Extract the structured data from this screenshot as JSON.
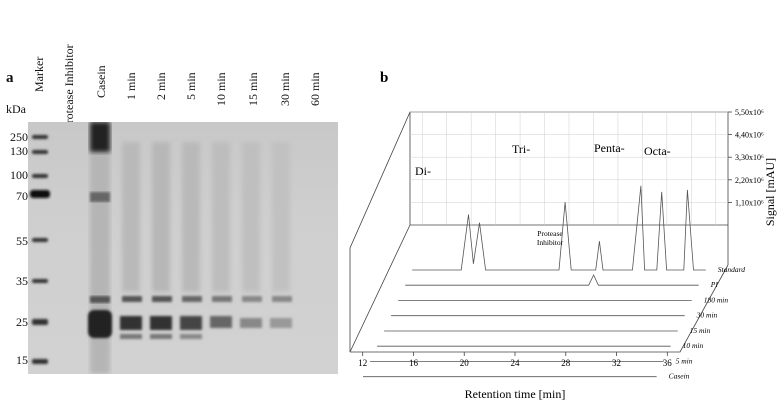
{
  "panel_a": {
    "letter": "a",
    "unit": "kDa",
    "lanes": [
      "Marker",
      "Protease  Inhibitor",
      "Casein",
      "1 min",
      "2 min",
      "5 min",
      "10 min",
      "15 min",
      "30 min",
      "60 min"
    ],
    "markers": [
      "250",
      "130",
      "100",
      "70",
      "55",
      "35",
      "25",
      "15"
    ]
  },
  "panel_b": {
    "letter": "b",
    "xlabel": "Retention time [min]",
    "ylabel": "Signal [mAU]",
    "peak_labels": [
      "Di-",
      "Tri-",
      "Protease Inhibitor",
      "Penta-",
      "Octa-"
    ],
    "y_ticks": [
      "1,10x10⁶",
      "2,20x10⁶",
      "3,30x10⁶",
      "4,40x10⁶",
      "5,50x10⁶"
    ],
    "x_ticks": [
      "12",
      "16",
      "20",
      "24",
      "28",
      "32",
      "36"
    ],
    "traces": [
      "Standard",
      "PI",
      "180 min",
      "30 min",
      "15 min",
      "10 min",
      "5 min",
      "Casein"
    ]
  },
  "chart_data": {
    "type": "line",
    "xlabel": "Retention time [min]",
    "ylabel": "Signal [mAU]",
    "xlim": [
      11,
      37
    ],
    "ylim": [
      0,
      5500000
    ],
    "series": [
      {
        "name": "Standard",
        "x": [
          12,
          16,
          16.6,
          17,
          17.5,
          18,
          20,
          24,
          24.5,
          25,
          27,
          27.3,
          27.6,
          30,
          30.7,
          31,
          31.5,
          32,
          32.4,
          32.8,
          33.5,
          34.2,
          34.5,
          35,
          36
        ],
        "values": [
          0,
          0,
          2700000,
          300000,
          2300000,
          0,
          0,
          0,
          3300000,
          0,
          0,
          1400000,
          0,
          0,
          4100000,
          0,
          0,
          0,
          3800000,
          0,
          0,
          0,
          3900000,
          0,
          0
        ]
      },
      {
        "name": "PI",
        "x": [
          12,
          16,
          20,
          27,
          27.4,
          27.8,
          32,
          36
        ],
        "values": [
          0,
          0,
          0,
          0,
          500000,
          0,
          0,
          0
        ]
      },
      {
        "name": "180 min",
        "x": [
          12,
          36
        ],
        "values": [
          0,
          0
        ]
      },
      {
        "name": "30 min",
        "x": [
          12,
          36
        ],
        "values": [
          0,
          0
        ]
      },
      {
        "name": "15 min",
        "x": [
          12,
          36
        ],
        "values": [
          0,
          0
        ]
      },
      {
        "name": "10 min",
        "x": [
          12,
          36
        ],
        "values": [
          0,
          0
        ]
      },
      {
        "name": "5 min",
        "x": [
          12,
          36
        ],
        "values": [
          0,
          0
        ]
      },
      {
        "name": "Casein",
        "x": [
          12,
          36
        ],
        "values": [
          0,
          0
        ]
      }
    ]
  }
}
